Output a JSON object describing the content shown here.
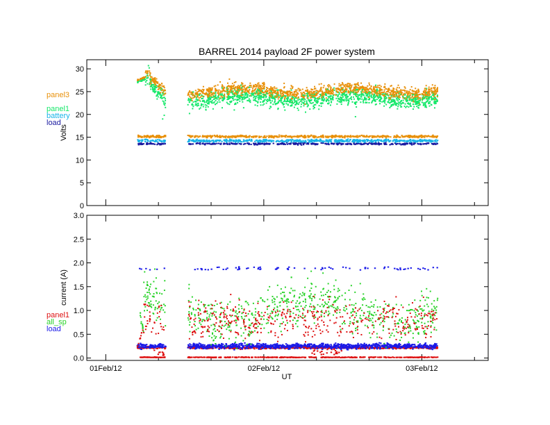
{
  "title": "BARREL 2014 payload 2F power system",
  "colors": {
    "orange": "#e8900a",
    "green": "#16e86a",
    "cyan": "#19b5e8",
    "navy": "#1a1aa0",
    "red": "#dd1010",
    "bright_green": "#2ad32a",
    "blue": "#1a1ae8",
    "axis": "#000000"
  },
  "chart_data": [
    {
      "type": "scatter",
      "ylabel": "Volts",
      "ylim": [
        0,
        32
      ],
      "yticks": [
        0,
        5,
        10,
        15,
        20,
        25,
        30
      ],
      "xlim": [
        -0.12,
        2.42
      ],
      "xticks": [
        0,
        1,
        2
      ],
      "xticklabels": [
        "",
        "",
        ""
      ],
      "minor_ticks_per_day": 3,
      "legend_position": "left",
      "gap": [
        0.38,
        0.52
      ],
      "data_range": [
        0.2,
        2.1
      ],
      "series": [
        {
          "name": "panel3",
          "color": "orange",
          "sample": [
            [
              0.22,
              27.3
            ],
            [
              0.26,
              28.8
            ],
            [
              0.3,
              26.5
            ],
            [
              0.34,
              24.9
            ],
            [
              0.42,
              23.1
            ],
            [
              0.47,
              24.3
            ],
            [
              0.6,
              25.8
            ],
            [
              0.72,
              24.2
            ],
            [
              0.9,
              26.5
            ],
            [
              1.1,
              25.4
            ],
            [
              1.3,
              26.1
            ],
            [
              1.5,
              24.7
            ],
            [
              1.75,
              25.6
            ],
            [
              1.95,
              24.3
            ],
            [
              2.1,
              25.0
            ]
          ]
        },
        {
          "name": "panel1",
          "color": "green",
          "sample": [
            [
              0.22,
              27.0
            ],
            [
              0.26,
              30.2
            ],
            [
              0.32,
              22.5
            ],
            [
              0.38,
              20.5
            ],
            [
              0.52,
              21.8
            ],
            [
              0.7,
              23.2
            ],
            [
              0.9,
              21.9
            ],
            [
              1.1,
              23.0
            ],
            [
              1.3,
              24.6
            ],
            [
              1.5,
              22.5
            ],
            [
              1.75,
              24.0
            ],
            [
              1.95,
              22.8
            ],
            [
              2.1,
              23.5
            ]
          ]
        },
        {
          "name": "battery",
          "color": "cyan",
          "sample": [
            [
              0.2,
              14.3
            ],
            [
              0.5,
              14.1
            ],
            [
              0.8,
              14.3
            ],
            [
              1.1,
              14.0
            ],
            [
              1.4,
              14.2
            ],
            [
              1.7,
              14.1
            ],
            [
              2.0,
              14.3
            ],
            [
              2.1,
              14.2
            ]
          ]
        },
        {
          "name": "load",
          "color": "navy",
          "sample": [
            [
              0.2,
              13.6
            ],
            [
              0.5,
              13.5
            ],
            [
              0.8,
              13.7
            ],
            [
              1.1,
              13.4
            ],
            [
              1.4,
              13.6
            ],
            [
              1.7,
              13.5
            ],
            [
              2.0,
              13.6
            ],
            [
              2.1,
              13.5
            ]
          ]
        },
        {
          "name": "",
          "color": "orange",
          "sample": [
            [
              0.2,
              15.2
            ],
            [
              0.5,
              15.3
            ],
            [
              0.8,
              15.1
            ],
            [
              1.1,
              15.4
            ],
            [
              1.4,
              15.2
            ],
            [
              1.7,
              15.3
            ],
            [
              2.0,
              15.1
            ],
            [
              2.1,
              15.3
            ]
          ]
        }
      ]
    },
    {
      "type": "scatter",
      "xlabel": "UT",
      "ylabel": "current (A)",
      "ylim": [
        -0.05,
        3.0
      ],
      "yticks": [
        0.0,
        0.5,
        1.0,
        1.5,
        2.0,
        2.5,
        3.0
      ],
      "yticklabels": [
        "0.0",
        "0.5",
        "1.0",
        "1.5",
        "2.0",
        "2.5",
        "3.0"
      ],
      "xlim": [
        -0.12,
        2.42
      ],
      "xticks": [
        0,
        1,
        2
      ],
      "xticklabels": [
        "01Feb/12",
        "02Feb/12",
        "03Feb/12"
      ],
      "minor_ticks_per_day": 3,
      "legend_position": "left",
      "gap": [
        0.38,
        0.52
      ],
      "data_range": [
        0.2,
        2.1
      ],
      "series": [
        {
          "name": "panel1",
          "color": "red",
          "sample": [
            [
              0.25,
              0.6
            ],
            [
              0.35,
              1.1
            ],
            [
              0.55,
              0.8
            ],
            [
              0.8,
              1.2
            ],
            [
              1.0,
              0.9
            ],
            [
              1.3,
              1.3
            ],
            [
              1.6,
              0.7
            ],
            [
              1.9,
              1.0
            ],
            [
              2.1,
              0.9
            ]
          ]
        },
        {
          "name": "all_sp",
          "color": "bright_green",
          "sample": [
            [
              0.2,
              1.35
            ],
            [
              0.3,
              1.5
            ],
            [
              0.55,
              1.0
            ],
            [
              0.8,
              1.5
            ],
            [
              1.0,
              1.2
            ],
            [
              1.2,
              1.6
            ],
            [
              1.4,
              1.1
            ],
            [
              1.6,
              0.8
            ],
            [
              1.9,
              1.2
            ],
            [
              2.1,
              1.6
            ]
          ]
        },
        {
          "name": "load",
          "color": "blue",
          "sample": [
            [
              0.2,
              0.25
            ],
            [
              0.6,
              0.3
            ],
            [
              1.0,
              0.22
            ],
            [
              1.4,
              0.28
            ],
            [
              1.8,
              0.24
            ],
            [
              2.1,
              0.26
            ],
            [
              0.3,
              1.9
            ],
            [
              0.7,
              1.88
            ],
            [
              1.2,
              1.87
            ],
            [
              1.6,
              1.9
            ],
            [
              2.05,
              1.88
            ]
          ]
        },
        {
          "name": "",
          "color": "red",
          "sample": [
            [
              0.2,
              0.02
            ],
            [
              0.6,
              0.02
            ],
            [
              1.0,
              0.02
            ],
            [
              1.4,
              0.02
            ],
            [
              1.8,
              0.02
            ],
            [
              2.1,
              0.02
            ],
            [
              0.3,
              0.22
            ],
            [
              1.0,
              0.25
            ],
            [
              1.8,
              0.2
            ]
          ]
        }
      ]
    }
  ]
}
